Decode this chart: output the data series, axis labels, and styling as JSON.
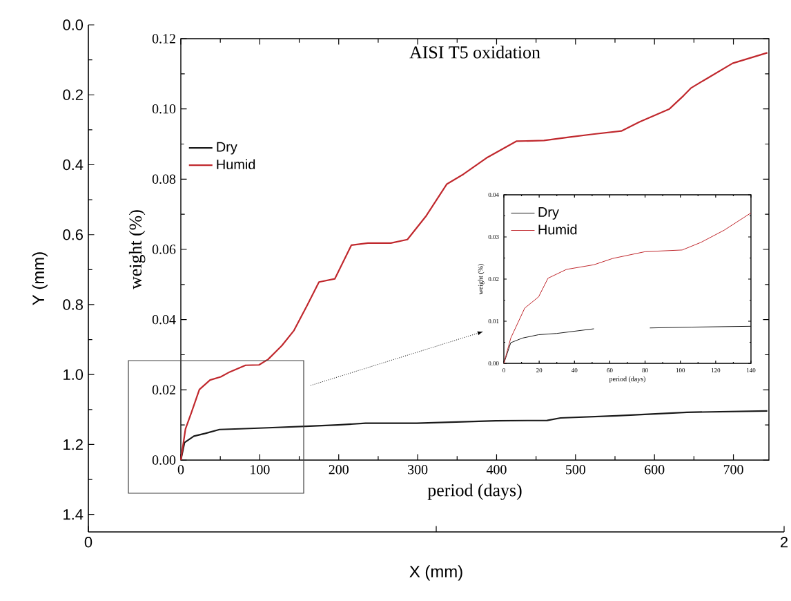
{
  "chart_data": [
    {
      "type": "line",
      "xlabel": "X (mm)",
      "ylabel": "Y (mm)",
      "xlim": [
        0,
        2
      ],
      "ylim": [
        1.45,
        0
      ],
      "xticks": [
        0,
        {
          "value": 1,
          "label": null
        },
        2
      ],
      "yticks": [
        {
          "value": 0,
          "label": "0.0"
        },
        0.2,
        0.4,
        0.6,
        0.8,
        {
          "value": 1,
          "label": "1.0"
        },
        1.2,
        1.4
      ]
    },
    {
      "type": "line",
      "title": "AISI T5 oxidation",
      "xlabel": "period (days)",
      "ylabel": "weight (%)",
      "xlim": [
        0,
        745
      ],
      "ylim": [
        0,
        0.12
      ],
      "xticks": [
        0,
        100,
        200,
        300,
        400,
        500,
        600,
        700
      ],
      "yticks": [
        {
          "value": 0,
          "label": "0.00"
        },
        0.02,
        0.04,
        0.06,
        0.08,
        {
          "value": 0.1,
          "label": "0.10"
        },
        0.12
      ],
      "legend": "left",
      "series": [
        {
          "name": "Dry",
          "color": "#1a1a1a",
          "x": [
            0,
            4.7,
            16.5,
            31,
            49,
            75,
            110.6,
            158,
            199,
            234,
            299,
            399,
            464,
            481,
            552,
            641,
            743
          ],
          "values": [
            0,
            0.005,
            0.0068,
            0.0076,
            0.0087,
            0.0089,
            0.0092,
            0.0096,
            0.01,
            0.0105,
            0.0105,
            0.0112,
            0.0113,
            0.012,
            0.0126,
            0.0136,
            0.014
          ]
        },
        {
          "name": "Humid",
          "color": "#c0282d",
          "x": [
            0,
            5.9,
            13.5,
            23.5,
            37,
            50.6,
            62,
            82,
            99,
            110.6,
            128,
            143,
            160.6,
            175,
            195,
            216,
            237,
            266,
            287,
            311,
            337,
            358,
            387,
            425,
            460,
            493,
            522,
            558,
            581,
            619,
            637,
            646,
            666,
            699,
            743
          ],
          "values": [
            0,
            0.0089,
            0.0136,
            0.0201,
            0.0228,
            0.0237,
            0.0251,
            0.027,
            0.0271,
            0.0287,
            0.0326,
            0.0368,
            0.0443,
            0.0507,
            0.0516,
            0.0612,
            0.0618,
            0.0618,
            0.0628,
            0.0696,
            0.0786,
            0.0814,
            0.086,
            0.0908,
            0.091,
            0.092,
            0.0928,
            0.0937,
            0.0963,
            0.1,
            0.1038,
            0.1059,
            0.1086,
            0.113,
            0.116
          ]
        }
      ]
    },
    {
      "type": "line",
      "xlabel": "period (days)",
      "ylabel": "weight (%)",
      "xlim": [
        0,
        140
      ],
      "ylim": [
        0,
        0.04
      ],
      "xticks": [
        0,
        20,
        40,
        60,
        80,
        100,
        120,
        140
      ],
      "yticks": [
        {
          "value": 0,
          "label": "0.00"
        },
        0.01,
        0.02,
        0.03,
        0.04
      ],
      "legend": "top left",
      "series": [
        {
          "name": "Dry",
          "color": "#1a1a1a",
          "x": [
            0,
            3.9,
            10.5,
            19.7,
            30,
            51,
            65,
            82.7,
            106,
            140
          ],
          "values": [
            0,
            0.0049,
            0.006,
            0.0068,
            0.0071,
            0.0082,
            null,
            0.0084,
            0.0086,
            0.0088
          ]
        },
        {
          "name": "Humid",
          "color": "#c0282d",
          "x": [
            0,
            3.9,
            11.8,
            19.7,
            25,
            35.5,
            51,
            61.7,
            80,
            101,
            111.6,
            124.8,
            140
          ],
          "values": [
            0,
            0.006,
            0.0131,
            0.0158,
            0.0202,
            0.0223,
            0.0234,
            0.0249,
            0.0265,
            0.0269,
            0.0287,
            0.0316,
            0.0357
          ]
        }
      ]
    }
  ]
}
